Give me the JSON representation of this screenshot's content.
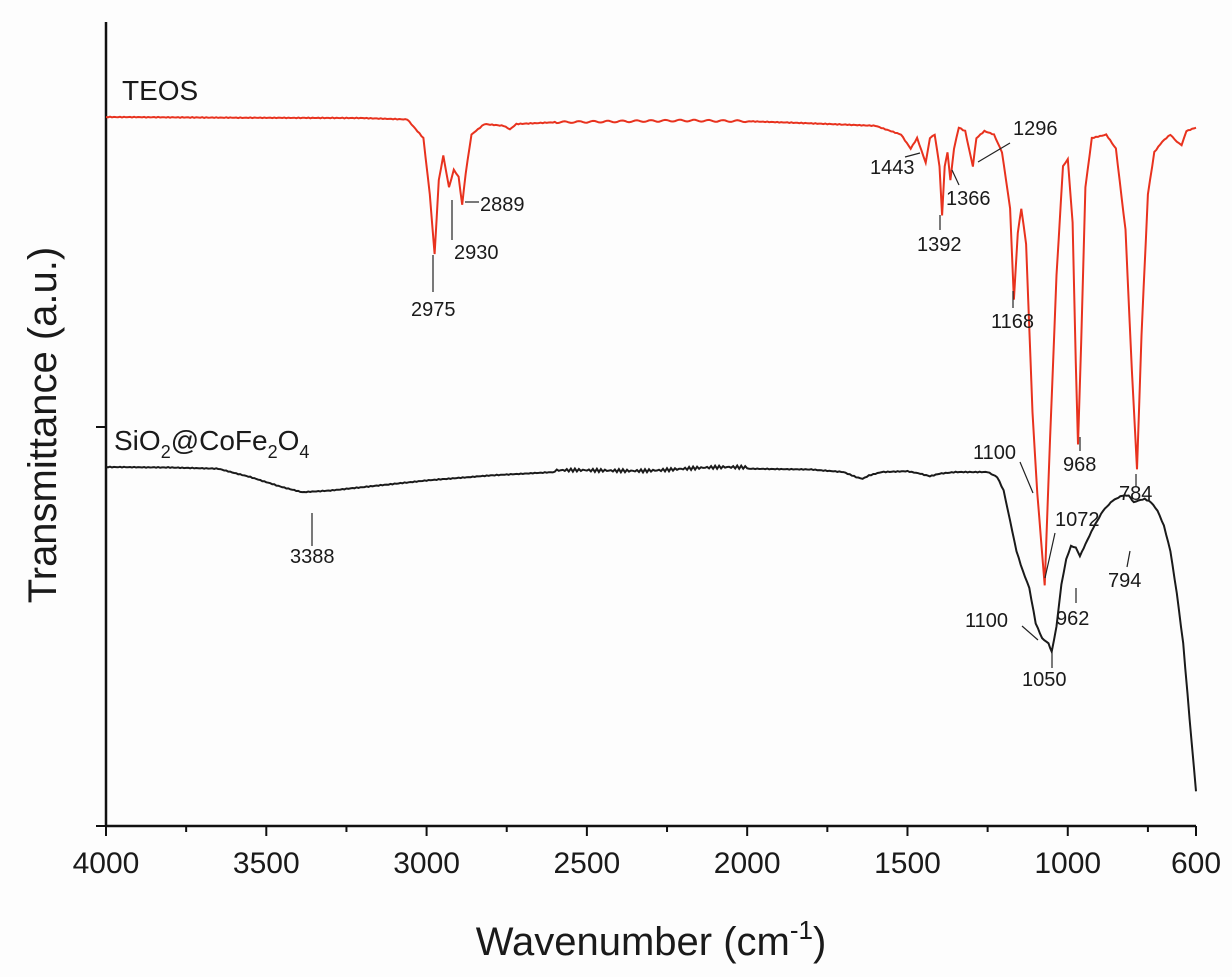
{
  "chart_data": {
    "type": "line",
    "ylabel": "Transmittance (a.u.)",
    "xlabel": {
      "main": "Wavenumber (cm",
      "sup": "-1",
      "close": ")"
    },
    "xlim": [
      4000,
      600
    ],
    "x_reversed": true,
    "x_ticks": [
      4000,
      3500,
      3000,
      2500,
      2000,
      1500,
      1000,
      600
    ],
    "y_ticks_unlabeled": 2,
    "grid": false,
    "series": [
      {
        "name": "TEOS",
        "color": "#e8321e",
        "points": [
          [
            4000,
            0.0
          ],
          [
            3600,
            0.002
          ],
          [
            3200,
            0.003
          ],
          [
            3060,
            0.007
          ],
          [
            3010,
            0.06
          ],
          [
            2990,
            0.22
          ],
          [
            2975,
            0.39
          ],
          [
            2962,
            0.18
          ],
          [
            2948,
            0.11
          ],
          [
            2938,
            0.16
          ],
          [
            2930,
            0.2
          ],
          [
            2915,
            0.15
          ],
          [
            2900,
            0.17
          ],
          [
            2889,
            0.25
          ],
          [
            2878,
            0.16
          ],
          [
            2860,
            0.05
          ],
          [
            2820,
            0.02
          ],
          [
            2760,
            0.025
          ],
          [
            2740,
            0.035
          ],
          [
            2720,
            0.02
          ],
          [
            2600,
            0.015
          ],
          [
            2200,
            0.01
          ],
          [
            2000,
            0.012
          ],
          [
            1800,
            0.018
          ],
          [
            1600,
            0.025
          ],
          [
            1520,
            0.05
          ],
          [
            1490,
            0.09
          ],
          [
            1470,
            0.06
          ],
          [
            1443,
            0.13
          ],
          [
            1430,
            0.06
          ],
          [
            1415,
            0.05
          ],
          [
            1400,
            0.14
          ],
          [
            1392,
            0.28
          ],
          [
            1384,
            0.14
          ],
          [
            1375,
            0.1
          ],
          [
            1366,
            0.18
          ],
          [
            1355,
            0.09
          ],
          [
            1340,
            0.03
          ],
          [
            1320,
            0.04
          ],
          [
            1296,
            0.14
          ],
          [
            1285,
            0.06
          ],
          [
            1260,
            0.04
          ],
          [
            1230,
            0.05
          ],
          [
            1205,
            0.1
          ],
          [
            1180,
            0.26
          ],
          [
            1168,
            0.52
          ],
          [
            1156,
            0.33
          ],
          [
            1145,
            0.26
          ],
          [
            1130,
            0.36
          ],
          [
            1110,
            0.84
          ],
          [
            1095,
            1.07
          ],
          [
            1072,
            1.33
          ],
          [
            1055,
            0.91
          ],
          [
            1035,
            0.45
          ],
          [
            1015,
            0.14
          ],
          [
            1000,
            0.12
          ],
          [
            985,
            0.3
          ],
          [
            975,
            0.7
          ],
          [
            968,
            0.93
          ],
          [
            958,
            0.64
          ],
          [
            945,
            0.2
          ],
          [
            925,
            0.06
          ],
          [
            880,
            0.05
          ],
          [
            850,
            0.09
          ],
          [
            820,
            0.32
          ],
          [
            800,
            0.72
          ],
          [
            784,
            1.0
          ],
          [
            770,
            0.62
          ],
          [
            750,
            0.22
          ],
          [
            730,
            0.1
          ],
          [
            705,
            0.07
          ],
          [
            680,
            0.05
          ],
          [
            660,
            0.07
          ],
          [
            645,
            0.08
          ],
          [
            630,
            0.04
          ],
          [
            600,
            0.03
          ]
        ],
        "annotations": [
          "2975",
          "2930",
          "2889",
          "1443",
          "1392",
          "1366",
          "1296",
          "1168",
          "1100",
          "968",
          "784",
          "1072"
        ]
      },
      {
        "name": "SiO2@CoFe2O4",
        "color": "#1a1a1a",
        "points": [
          [
            4000,
            0.0
          ],
          [
            3800,
            0.003
          ],
          [
            3650,
            0.01
          ],
          [
            3550,
            0.06
          ],
          [
            3450,
            0.12
          ],
          [
            3388,
            0.15
          ],
          [
            3300,
            0.14
          ],
          [
            3200,
            0.12
          ],
          [
            3000,
            0.08
          ],
          [
            2800,
            0.05
          ],
          [
            2600,
            0.03
          ],
          [
            2400,
            0.015
          ],
          [
            2200,
            0.01
          ],
          [
            2000,
            0.01
          ],
          [
            1800,
            0.015
          ],
          [
            1700,
            0.03
          ],
          [
            1660,
            0.06
          ],
          [
            1640,
            0.07
          ],
          [
            1620,
            0.05
          ],
          [
            1580,
            0.03
          ],
          [
            1500,
            0.025
          ],
          [
            1460,
            0.04
          ],
          [
            1430,
            0.055
          ],
          [
            1400,
            0.04
          ],
          [
            1350,
            0.03
          ],
          [
            1250,
            0.03
          ],
          [
            1220,
            0.06
          ],
          [
            1200,
            0.14
          ],
          [
            1180,
            0.32
          ],
          [
            1160,
            0.5
          ],
          [
            1140,
            0.62
          ],
          [
            1120,
            0.72
          ],
          [
            1100,
            0.93
          ],
          [
            1080,
            1.02
          ],
          [
            1060,
            1.05
          ],
          [
            1050,
            1.1
          ],
          [
            1035,
            0.95
          ],
          [
            1020,
            0.7
          ],
          [
            1005,
            0.55
          ],
          [
            990,
            0.47
          ],
          [
            975,
            0.48
          ],
          [
            962,
            0.53
          ],
          [
            945,
            0.46
          ],
          [
            920,
            0.36
          ],
          [
            890,
            0.26
          ],
          [
            860,
            0.2
          ],
          [
            830,
            0.17
          ],
          [
            810,
            0.17
          ],
          [
            794,
            0.21
          ],
          [
            780,
            0.2
          ],
          [
            760,
            0.19
          ],
          [
            740,
            0.21
          ],
          [
            720,
            0.26
          ],
          [
            700,
            0.35
          ],
          [
            680,
            0.5
          ],
          [
            660,
            0.75
          ],
          [
            640,
            1.05
          ],
          [
            620,
            1.5
          ],
          [
            600,
            1.93
          ]
        ],
        "annotations": [
          "3388",
          "1100",
          "1050",
          "962",
          "794"
        ]
      }
    ],
    "series_labels": {
      "teos": "TEOS",
      "sio2_parts": [
        "SiO",
        "2",
        "@CoFe",
        "2",
        "O",
        "4"
      ]
    }
  }
}
